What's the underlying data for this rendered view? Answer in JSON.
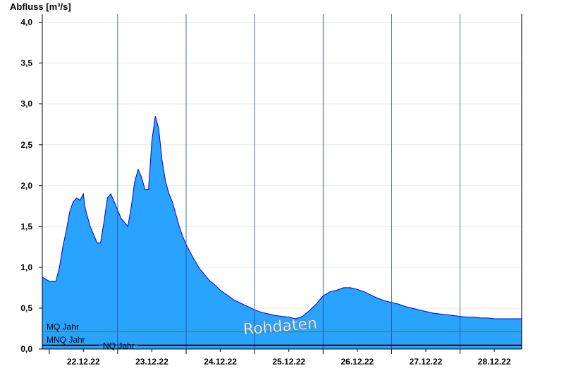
{
  "chart_data": {
    "type": "area",
    "ylabel": "Abfluss [m³/s]",
    "ylim": [
      0,
      4.1
    ],
    "yticks": [
      {
        "v": 0.0,
        "label": "0,0"
      },
      {
        "v": 0.5,
        "label": "0,5"
      },
      {
        "v": 1.0,
        "label": "1,0"
      },
      {
        "v": 1.5,
        "label": "1,5"
      },
      {
        "v": 2.0,
        "label": "2,0"
      },
      {
        "v": 2.5,
        "label": "2,5"
      },
      {
        "v": 3.0,
        "label": "3,0"
      },
      {
        "v": 3.5,
        "label": "3,5"
      },
      {
        "v": 4.0,
        "label": "4,0"
      }
    ],
    "xlim_days": [
      21.9,
      28.9
    ],
    "x_day_labels": [
      "22.12.22",
      "23.12.22",
      "24.12.22",
      "25.12.22",
      "26.12.22",
      "27.12.22",
      "28.12.22"
    ],
    "grid": "horizontal",
    "fill_color": "#29a3ff",
    "line_color": "#0000cc",
    "series": [
      {
        "x": [
          21.9,
          21.96,
          22.0,
          22.06,
          22.1,
          22.15,
          22.2,
          22.25,
          22.3,
          22.35,
          22.4,
          22.45,
          22.5,
          22.52,
          22.55,
          22.6,
          22.65,
          22.7,
          22.75,
          22.8,
          22.85,
          22.9,
          22.95,
          23.0,
          23.05,
          23.1,
          23.15,
          23.2,
          23.25,
          23.3,
          23.35,
          23.4,
          23.45,
          23.5,
          23.55,
          23.6,
          23.65,
          23.7,
          23.75,
          23.8,
          23.85,
          23.9,
          23.95,
          24.0,
          24.05,
          24.1,
          24.15,
          24.2,
          24.25,
          24.3,
          24.35,
          24.4,
          24.45,
          24.5,
          24.55,
          24.6,
          24.65,
          24.7,
          24.75,
          24.8,
          24.85,
          24.9,
          24.95,
          25.0,
          25.1,
          25.2,
          25.3,
          25.4,
          25.5,
          25.6,
          25.7,
          25.8,
          25.9,
          26.0,
          26.1,
          26.2,
          26.3,
          26.4,
          26.5,
          26.6,
          26.65,
          26.7,
          26.8,
          26.9,
          27.0,
          27.1,
          27.2,
          27.3,
          27.4,
          27.5,
          27.6,
          27.7,
          27.8,
          27.9,
          28.0,
          28.1,
          28.2,
          28.3,
          28.4,
          28.5,
          28.6,
          28.7,
          28.8,
          28.9
        ],
        "y": [
          0.88,
          0.85,
          0.83,
          0.83,
          0.83,
          1.0,
          1.25,
          1.45,
          1.68,
          1.8,
          1.85,
          1.82,
          1.9,
          1.75,
          1.65,
          1.5,
          1.4,
          1.3,
          1.3,
          1.55,
          1.85,
          1.9,
          1.8,
          1.7,
          1.6,
          1.55,
          1.5,
          1.75,
          2.05,
          2.2,
          2.1,
          1.95,
          1.95,
          2.55,
          2.85,
          2.7,
          2.3,
          2.05,
          1.9,
          1.8,
          1.65,
          1.5,
          1.38,
          1.28,
          1.2,
          1.12,
          1.05,
          0.98,
          0.93,
          0.88,
          0.83,
          0.8,
          0.76,
          0.72,
          0.69,
          0.66,
          0.63,
          0.6,
          0.58,
          0.56,
          0.54,
          0.52,
          0.5,
          0.48,
          0.45,
          0.43,
          0.41,
          0.4,
          0.39,
          0.37,
          0.4,
          0.47,
          0.55,
          0.65,
          0.7,
          0.72,
          0.75,
          0.75,
          0.73,
          0.7,
          0.68,
          0.66,
          0.62,
          0.59,
          0.57,
          0.55,
          0.52,
          0.5,
          0.48,
          0.46,
          0.44,
          0.43,
          0.42,
          0.41,
          0.4,
          0.39,
          0.39,
          0.38,
          0.38,
          0.37,
          0.37,
          0.37,
          0.37,
          0.37
        ]
      }
    ],
    "reference_lines": [
      {
        "name": "MQ Jahr",
        "value": 0.21,
        "color": "#2e8b57"
      },
      {
        "name": "MNQ Jahr",
        "value": 0.05,
        "color": "#000000"
      },
      {
        "name": "NQ Jahr",
        "value": 0.04,
        "color": "#000000"
      }
    ],
    "annotation": "Rohdaten"
  }
}
